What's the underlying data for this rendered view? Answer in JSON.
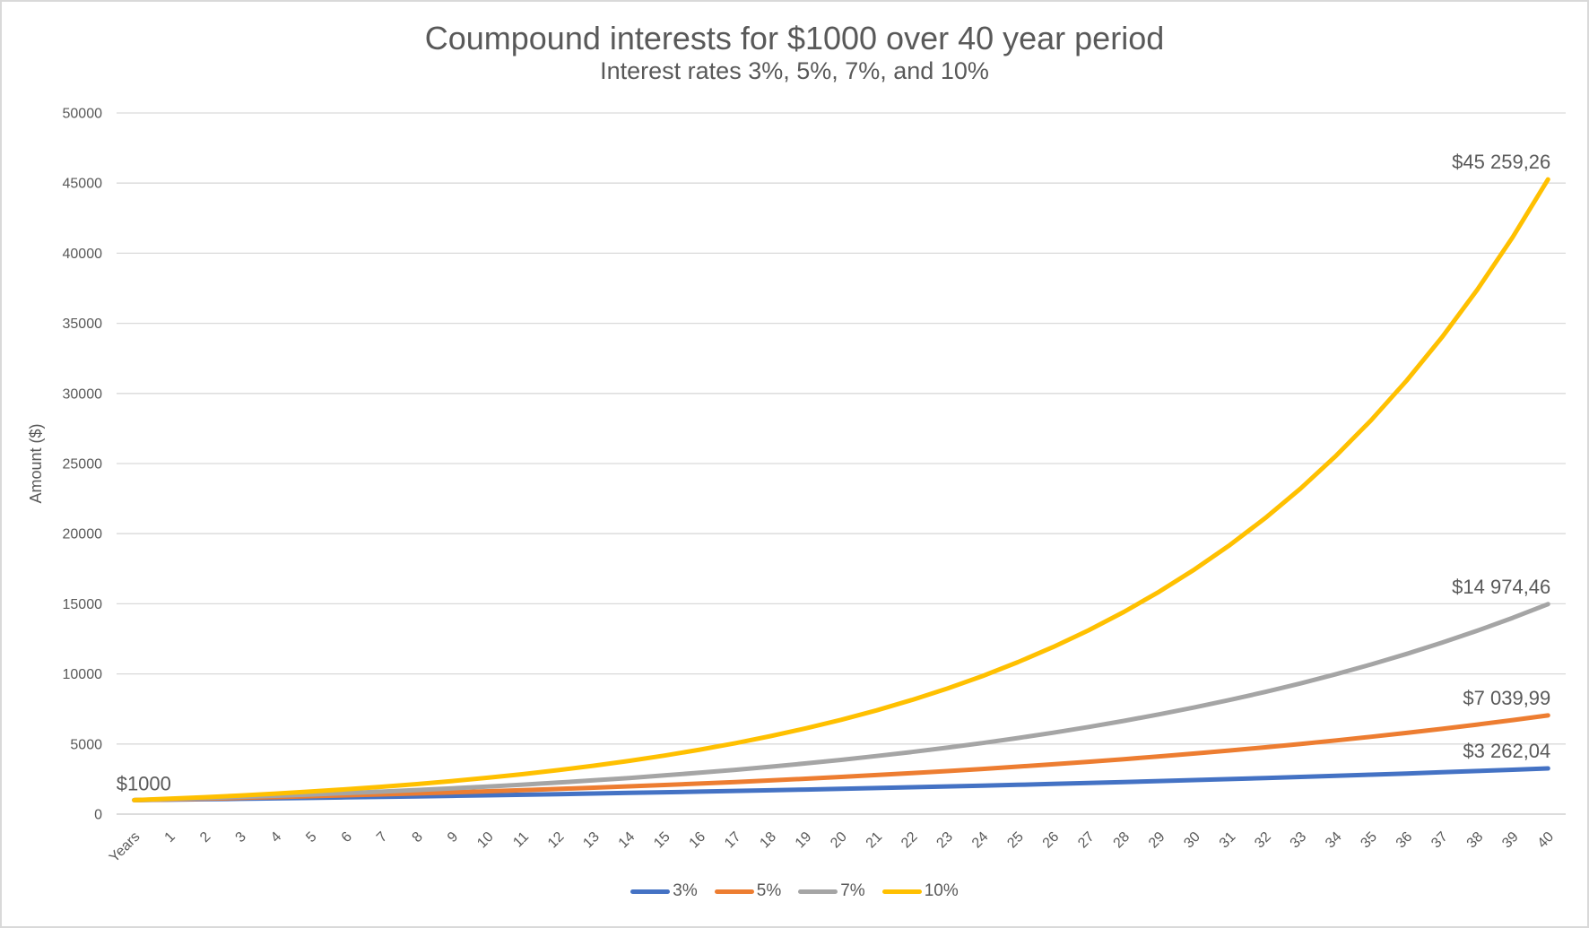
{
  "chart_data": {
    "type": "line",
    "title": "Coumpound interests for $1000 over 40 year period",
    "subtitle": "Interest rates 3%, 5%, 7%, and 10%",
    "xlabel": "Years",
    "ylabel": "Amount ($)",
    "ylim": [
      0,
      50000
    ],
    "yticks": [
      0,
      5000,
      10000,
      15000,
      20000,
      25000,
      30000,
      35000,
      40000,
      45000,
      50000
    ],
    "grid": "horizontal",
    "legend_position": "bottom",
    "categories": [
      "Years",
      "1",
      "2",
      "3",
      "4",
      "5",
      "6",
      "7",
      "8",
      "9",
      "10",
      "11",
      "12",
      "13",
      "14",
      "15",
      "16",
      "17",
      "18",
      "19",
      "20",
      "21",
      "22",
      "23",
      "24",
      "25",
      "26",
      "27",
      "28",
      "29",
      "30",
      "31",
      "32",
      "33",
      "34",
      "35",
      "36",
      "37",
      "38",
      "39",
      "40"
    ],
    "series": [
      {
        "name": "3%",
        "color": "#4472C4",
        "values": [
          1000,
          1030,
          1060.9,
          1092.73,
          1125.51,
          1159.27,
          1194.05,
          1229.87,
          1266.77,
          1304.77,
          1343.92,
          1384.23,
          1425.76,
          1468.53,
          1512.59,
          1557.97,
          1604.71,
          1652.85,
          1702.43,
          1753.51,
          1806.11,
          1860.29,
          1916.1,
          1973.59,
          2032.79,
          2093.78,
          2156.59,
          2221.29,
          2287.93,
          2356.57,
          2427.26,
          2500.08,
          2575.08,
          2652.34,
          2731.91,
          2813.86,
          2898.28,
          2985.23,
          3074.78,
          3167.03,
          3262.04
        ]
      },
      {
        "name": "5%",
        "color": "#ED7D31",
        "values": [
          1000,
          1050,
          1102.5,
          1157.63,
          1215.51,
          1276.28,
          1340.1,
          1407.1,
          1477.46,
          1551.33,
          1628.89,
          1710.34,
          1795.86,
          1885.65,
          1979.93,
          2078.93,
          2182.87,
          2292.02,
          2406.62,
          2526.95,
          2653.3,
          2785.96,
          2925.26,
          3071.52,
          3225.1,
          3386.35,
          3555.67,
          3733.46,
          3920.13,
          4116.14,
          4321.94,
          4538.04,
          4764.94,
          5003.19,
          5253.35,
          5516.02,
          5791.82,
          6081.41,
          6385.48,
          6704.75,
          7039.99
        ]
      },
      {
        "name": "7%",
        "color": "#A5A5A5",
        "values": [
          1000,
          1070,
          1144.9,
          1225.04,
          1310.8,
          1402.55,
          1500.73,
          1605.78,
          1718.19,
          1838.46,
          1967.15,
          2104.85,
          2252.19,
          2409.85,
          2578.53,
          2759.03,
          2952.16,
          3158.82,
          3379.93,
          3616.53,
          3869.68,
          4140.56,
          4430.4,
          4740.53,
          5072.37,
          5427.43,
          5807.35,
          6213.87,
          6648.84,
          7114.26,
          7612.26,
          8145.11,
          8715.27,
          9325.34,
          9978.11,
          10676.58,
          11423.94,
          12223.62,
          13079.27,
          13994.82,
          14974.46
        ]
      },
      {
        "name": "10%",
        "color": "#FFC000",
        "values": [
          1000,
          1100,
          1210,
          1331,
          1464.1,
          1610.51,
          1771.56,
          1948.72,
          2143.59,
          2357.95,
          2593.74,
          2853.12,
          3138.43,
          3452.27,
          3797.5,
          4177.25,
          4594.97,
          5054.47,
          5559.92,
          6115.91,
          6727.5,
          7400.25,
          8140.27,
          8954.3,
          9849.73,
          10834.71,
          11918.18,
          13109.99,
          14420.99,
          15863.09,
          17449.4,
          19194.34,
          21113.78,
          23225.15,
          25547.67,
          28102.44,
          30912.68,
          34003.95,
          37404.34,
          41144.78,
          45259.26
        ]
      }
    ],
    "point_labels": [
      {
        "text": "$1000",
        "series": "10%",
        "point": 0,
        "position": "above-start"
      },
      {
        "text": "$3 262,04",
        "series": "3%",
        "point": 40,
        "position": "above-end"
      },
      {
        "text": "$7 039,99",
        "series": "5%",
        "point": 40,
        "position": "above-end"
      },
      {
        "text": "$14 974,46",
        "series": "7%",
        "point": 40,
        "position": "above-end"
      },
      {
        "text": "$45 259,26",
        "series": "10%",
        "point": 40,
        "position": "above-end"
      }
    ]
  },
  "colors": {
    "text": "#595959",
    "gridline": "#D9D9D9",
    "axis_line": "#C8C8C8",
    "background": "#FFFFFF",
    "border": "#D9D9D9"
  }
}
